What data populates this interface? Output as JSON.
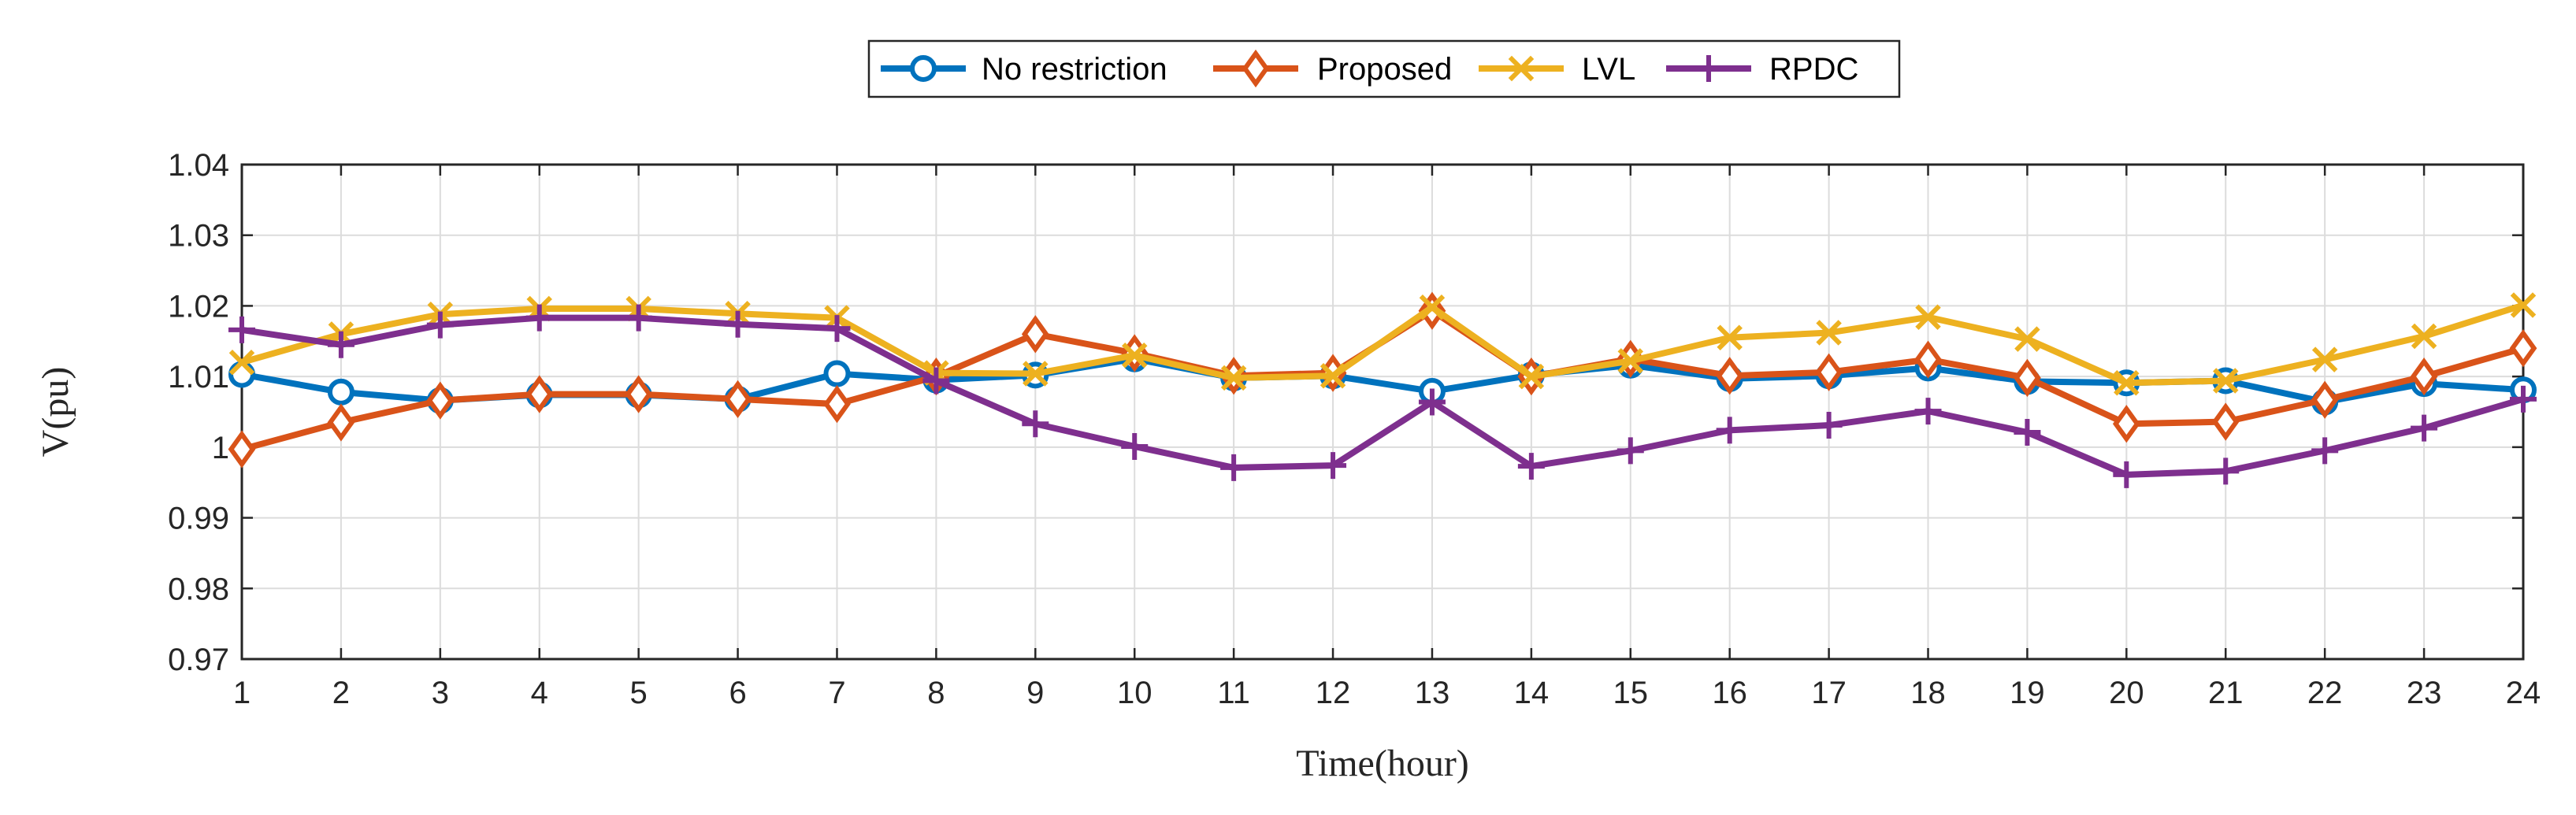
{
  "chart_data": {
    "type": "line",
    "title": "",
    "xlabel": "Time(hour)",
    "ylabel": "V(pu)",
    "xlim": [
      1,
      24
    ],
    "ylim": [
      0.97,
      1.04
    ],
    "x": [
      1,
      2,
      3,
      4,
      5,
      6,
      7,
      8,
      9,
      10,
      11,
      12,
      13,
      14,
      15,
      16,
      17,
      18,
      19,
      20,
      21,
      22,
      23,
      24
    ],
    "xticks": [
      1,
      2,
      3,
      4,
      5,
      6,
      7,
      8,
      9,
      10,
      11,
      12,
      13,
      14,
      15,
      16,
      17,
      18,
      19,
      20,
      21,
      22,
      23,
      24
    ],
    "xtick_labels": [
      "1",
      "2",
      "3",
      "4",
      "5",
      "6",
      "7",
      "8",
      "9",
      "10",
      "11",
      "12",
      "13",
      "14",
      "15",
      "16",
      "17",
      "18",
      "19",
      "20",
      "21",
      "22",
      "23",
      "24"
    ],
    "yticks": [
      0.97,
      0.98,
      0.99,
      1,
      1.01,
      1.02,
      1.03,
      1.04
    ],
    "ytick_labels": [
      "0.97",
      "0.98",
      "0.99",
      "1",
      "1.01",
      "1.02",
      "1.03",
      "1.04"
    ],
    "grid": true,
    "legend_position": "top-center",
    "series": [
      {
        "name": "No restriction",
        "color": "#0072BD",
        "marker": "circle",
        "values": [
          1.0103,
          1.0078,
          1.0066,
          1.0074,
          1.0074,
          1.0068,
          1.0104,
          1.0095,
          1.0102,
          1.0125,
          1.0098,
          1.0101,
          1.0079,
          1.0102,
          1.0116,
          1.0097,
          1.0101,
          1.0112,
          1.0093,
          1.0091,
          1.0094,
          1.0064,
          1.009,
          1.0081
        ]
      },
      {
        "name": "Proposed",
        "color": "#D95319",
        "marker": "diamond",
        "values": [
          0.9997,
          1.0035,
          1.0066,
          1.0075,
          1.0075,
          1.0068,
          1.0061,
          1.01,
          1.016,
          1.0133,
          1.0101,
          1.0105,
          1.0193,
          1.01,
          1.0125,
          1.0101,
          1.0106,
          1.0124,
          1.0098,
          1.0033,
          1.0036,
          1.0067,
          1.01,
          1.014
        ]
      },
      {
        "name": "LVL",
        "color": "#EDB120",
        "marker": "x",
        "values": [
          1.012,
          1.016,
          1.0188,
          1.0196,
          1.0196,
          1.0189,
          1.0183,
          1.0105,
          1.0104,
          1.013,
          1.0098,
          1.0101,
          1.0198,
          1.01,
          1.0122,
          1.0155,
          1.0162,
          1.0184,
          1.0153,
          1.0091,
          1.0094,
          1.0124,
          1.0157,
          1.0201
        ]
      },
      {
        "name": "RPDC",
        "color": "#7E2F8E",
        "marker": "plus",
        "values": [
          1.0166,
          1.0145,
          1.0173,
          1.0183,
          1.0183,
          1.0174,
          1.0168,
          1.0094,
          1.0033,
          1.0001,
          0.9971,
          0.9974,
          1.0064,
          0.9973,
          0.9995,
          1.0024,
          1.0031,
          1.0051,
          1.0021,
          0.9961,
          0.9966,
          0.9995,
          1.0027,
          1.0068
        ]
      }
    ]
  }
}
